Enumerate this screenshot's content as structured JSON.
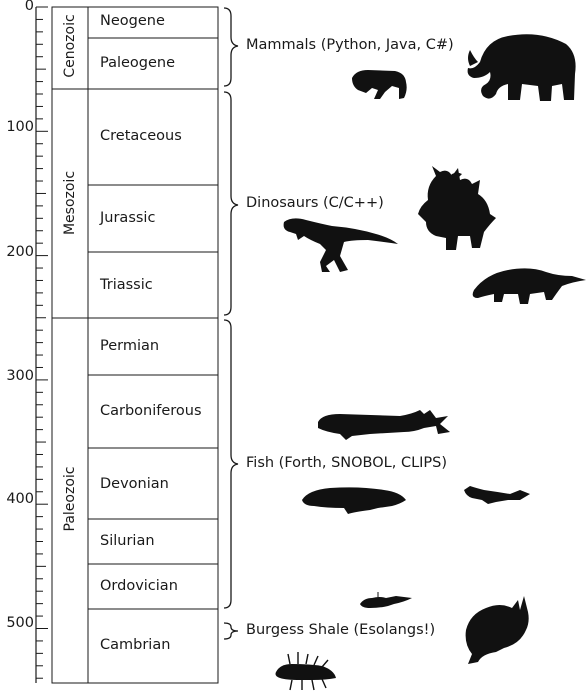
{
  "axis": {
    "ticks": [
      "0",
      "100",
      "200",
      "300",
      "400",
      "500"
    ]
  },
  "eras": [
    {
      "name": "Cenozoic"
    },
    {
      "name": "Mesozoic"
    },
    {
      "name": "Paleozoic"
    }
  ],
  "periods": [
    {
      "name": "Neogene"
    },
    {
      "name": "Paleogene"
    },
    {
      "name": "Cretaceous"
    },
    {
      "name": "Jurassic"
    },
    {
      "name": "Triassic"
    },
    {
      "name": "Permian"
    },
    {
      "name": "Carboniferous"
    },
    {
      "name": "Devonian"
    },
    {
      "name": "Silurian"
    },
    {
      "name": "Ordovician"
    },
    {
      "name": "Cambrian"
    }
  ],
  "groups": [
    {
      "label": "Mammals (Python, Java, C#)"
    },
    {
      "label": "Dinosaurs (C/C++)"
    },
    {
      "label": "Fish (Forth, SNOBOL, CLIPS)"
    },
    {
      "label": "Burgess Shale (Esolangs!)"
    }
  ],
  "silhouettes": [
    "sabertooth-cat-icon",
    "mammoth-icon",
    "t-rex-icon",
    "styracosaurus-icon",
    "ankylosaur-icon",
    "placoderm-fish-icon",
    "coelacanth-fish-icon",
    "small-fish-icon",
    "trilobite-icon",
    "anomalocaris-icon",
    "hallucigenia-icon"
  ]
}
